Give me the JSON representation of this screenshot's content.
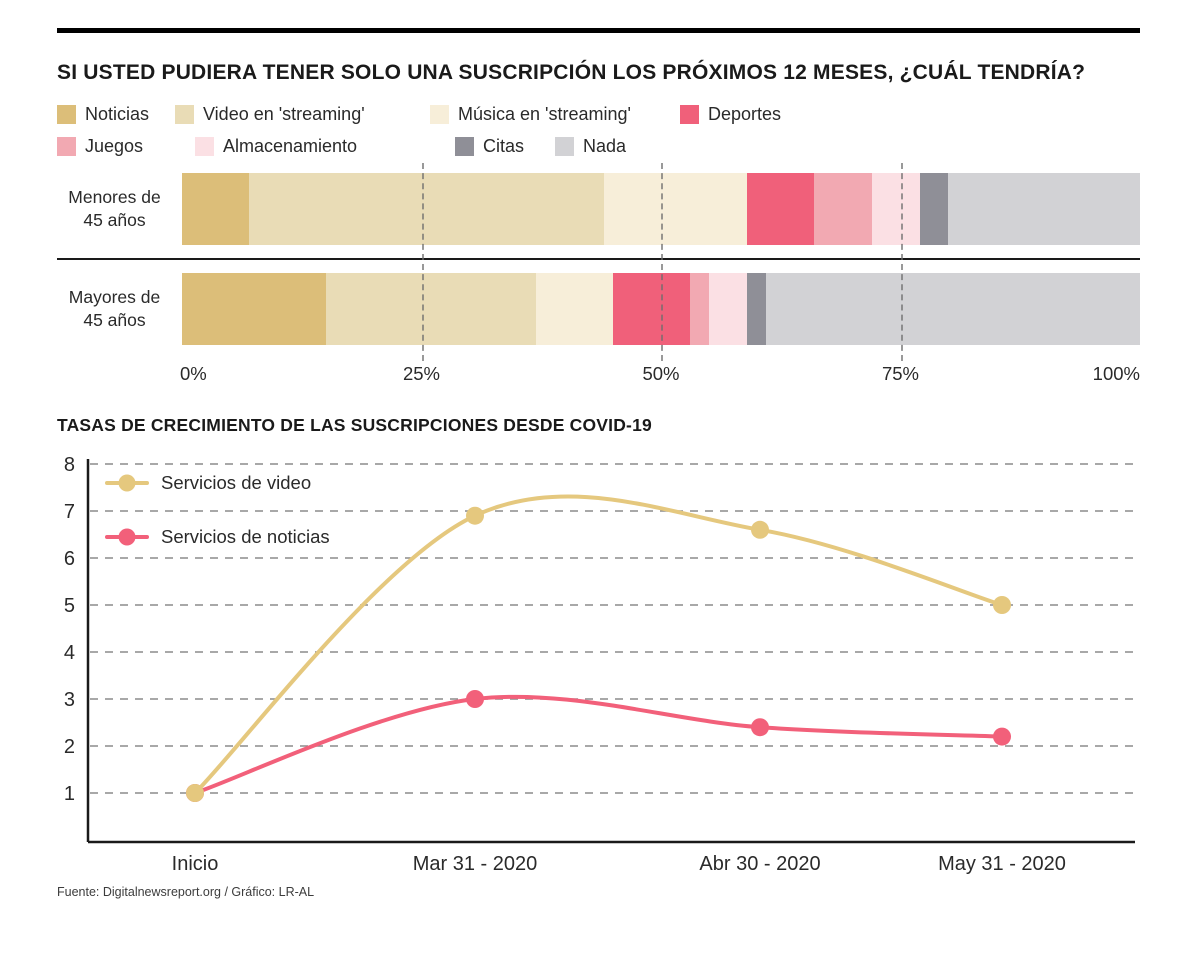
{
  "chart_data": [
    {
      "type": "bar",
      "variant": "horizontal-stacked-100",
      "title": "SI USTED PUDIERA TENER SOLO UNA SUSCRIPCIÓN LOS PRÓXIMOS 12 MESES, ¿CUÁL TENDRÍA?",
      "unit": "%",
      "categories": [
        "Noticias",
        "Video en 'streaming'",
        "Música en 'streaming'",
        "Deportes",
        "Juegos",
        "Almacenamiento",
        "Citas",
        "Nada"
      ],
      "colors": [
        "#dcbe79",
        "#e9dcb6",
        "#f7eed9",
        "#f0607a",
        "#f2a9b2",
        "#fbe0e4",
        "#8f8f97",
        "#d2d2d5"
      ],
      "legend_rows": [
        [
          0,
          1,
          2,
          3
        ],
        [
          4,
          5,
          6,
          7
        ]
      ],
      "rows": [
        {
          "label": "Menores de\n45 años",
          "values": [
            7,
            37,
            15,
            7,
            6,
            5,
            3,
            20
          ]
        },
        {
          "label": "Mayores de\n45 años",
          "values": [
            15,
            22,
            8,
            8,
            2,
            4,
            2,
            39
          ]
        }
      ],
      "x_ticks": [
        {
          "label": "0%",
          "pos": 0
        },
        {
          "label": "25%",
          "pos": 25
        },
        {
          "label": "50%",
          "pos": 50
        },
        {
          "label": "75%",
          "pos": 75
        },
        {
          "label": "100%",
          "pos": 100
        }
      ],
      "gridlines_pos": [
        25,
        50,
        75
      ],
      "xlim": [
        0,
        100
      ]
    },
    {
      "type": "line",
      "title": "TASAS DE CRECIMIENTO DE LAS SUSCRIPCIONES DESDE COVID-19",
      "x_labels": [
        "Inicio",
        "Mar 31 - 2020",
        "Abr 30 - 2020",
        "May 31 - 2020"
      ],
      "y_ticks": [
        1,
        2,
        3,
        4,
        5,
        6,
        7,
        8
      ],
      "ylim": [
        1,
        8
      ],
      "grid": "dashed-horizontal",
      "legend_position": "top-left-inside",
      "series": [
        {
          "name": "Servicios de video",
          "color": "#e5c87e",
          "values": [
            1,
            6.9,
            6.6,
            5
          ]
        },
        {
          "name": "Servicios de noticias",
          "color": "#f2607a",
          "values": [
            1,
            3,
            2.4,
            2.2
          ]
        }
      ]
    }
  ],
  "footer": {
    "source": "Fuente: Digitalnewsreport.org / Gráfico: LR-AL"
  },
  "styles": {
    "text_color": "#1a1a1a",
    "grid_color": "#6e6e6e",
    "axis_color": "#1a1a1a",
    "background": "#ffffff"
  }
}
